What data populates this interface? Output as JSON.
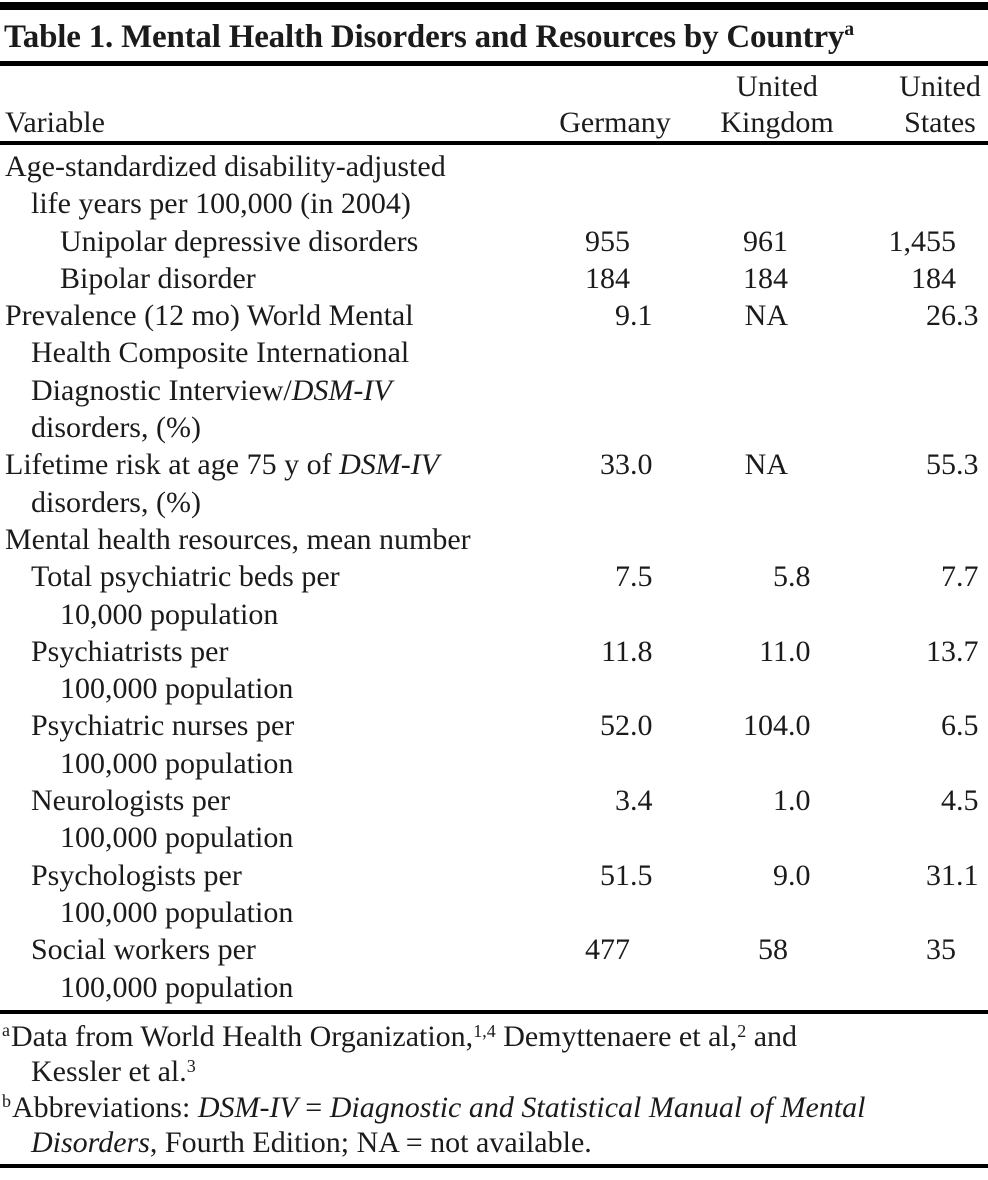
{
  "title": {
    "text": "Table 1. Mental Health Disorders and Resources by Country",
    "footnote_marker": "a"
  },
  "header": {
    "variable_label": "Variable",
    "columns": [
      {
        "name": "germany",
        "lines": [
          "",
          "Germany"
        ]
      },
      {
        "name": "united-kingdom",
        "lines": [
          "United",
          "Kingdom"
        ]
      },
      {
        "name": "united-states",
        "lines": [
          "United",
          "States"
        ]
      }
    ]
  },
  "table": {
    "lines": [
      {
        "indent": 0,
        "segments": [
          {
            "text": "Age-standardized disability-adjusted"
          }
        ],
        "values": null
      },
      {
        "indent": 1,
        "segments": [
          {
            "text": "life years per 100,000 (in 2004)"
          }
        ],
        "values": null
      },
      {
        "indent": 2,
        "segments": [
          {
            "text": "Unipolar depressive disorders"
          }
        ],
        "values": [
          {
            "int": "955",
            "dec": ""
          },
          {
            "int": "961",
            "dec": ""
          },
          {
            "int": "1,455",
            "dec": ""
          }
        ]
      },
      {
        "indent": 2,
        "segments": [
          {
            "text": "Bipolar disorder"
          }
        ],
        "values": [
          {
            "int": "184",
            "dec": ""
          },
          {
            "int": "184",
            "dec": ""
          },
          {
            "int": "184",
            "dec": ""
          }
        ]
      },
      {
        "indent": 0,
        "segments": [
          {
            "text": "Prevalence (12 mo) World Mental"
          }
        ],
        "values": [
          {
            "int": "9",
            "dec": ".1"
          },
          {
            "int": "NA",
            "dec": ""
          },
          {
            "int": "26",
            "dec": ".3"
          }
        ]
      },
      {
        "indent": 1,
        "segments": [
          {
            "text": "Health Composite International"
          }
        ],
        "values": null
      },
      {
        "indent": 1,
        "segments": [
          {
            "text": "Diagnostic Interview/"
          },
          {
            "text": "DSM-IV",
            "italic": true
          }
        ],
        "values": null
      },
      {
        "indent": 1,
        "segments": [
          {
            "text": "disorders, (%)"
          }
        ],
        "values": null
      },
      {
        "indent": 0,
        "segments": [
          {
            "text": "Lifetime risk at age 75 y of "
          },
          {
            "text": "DSM-IV",
            "italic": true
          }
        ],
        "values": [
          {
            "int": "33",
            "dec": ".0"
          },
          {
            "int": "NA",
            "dec": ""
          },
          {
            "int": "55",
            "dec": ".3"
          }
        ]
      },
      {
        "indent": 1,
        "segments": [
          {
            "text": "disorders, (%)"
          }
        ],
        "values": null
      },
      {
        "indent": 0,
        "segments": [
          {
            "text": "Mental health resources, mean number"
          }
        ],
        "values": null
      },
      {
        "indent": 1,
        "segments": [
          {
            "text": "Total psychiatric beds per"
          }
        ],
        "values": [
          {
            "int": "7",
            "dec": ".5"
          },
          {
            "int": "5",
            "dec": ".8"
          },
          {
            "int": "7",
            "dec": ".7"
          }
        ]
      },
      {
        "indent": 2,
        "segments": [
          {
            "text": "10,000 population"
          }
        ],
        "values": null
      },
      {
        "indent": 1,
        "segments": [
          {
            "text": "Psychiatrists per"
          }
        ],
        "values": [
          {
            "int": "11",
            "dec": ".8"
          },
          {
            "int": "11",
            "dec": ".0"
          },
          {
            "int": "13",
            "dec": ".7"
          }
        ]
      },
      {
        "indent": 2,
        "segments": [
          {
            "text": "100,000 population"
          }
        ],
        "values": null
      },
      {
        "indent": 1,
        "segments": [
          {
            "text": "Psychiatric nurses per"
          }
        ],
        "values": [
          {
            "int": "52",
            "dec": ".0"
          },
          {
            "int": "104",
            "dec": ".0"
          },
          {
            "int": "6",
            "dec": ".5"
          }
        ]
      },
      {
        "indent": 2,
        "segments": [
          {
            "text": "100,000 population"
          }
        ],
        "values": null
      },
      {
        "indent": 1,
        "segments": [
          {
            "text": "Neurologists per"
          }
        ],
        "values": [
          {
            "int": "3",
            "dec": ".4"
          },
          {
            "int": "1",
            "dec": ".0"
          },
          {
            "int": "4",
            "dec": ".5"
          }
        ]
      },
      {
        "indent": 2,
        "segments": [
          {
            "text": "100,000 population"
          }
        ],
        "values": null
      },
      {
        "indent": 1,
        "segments": [
          {
            "text": "Psychologists per"
          }
        ],
        "values": [
          {
            "int": "51",
            "dec": ".5"
          },
          {
            "int": "9",
            "dec": ".0"
          },
          {
            "int": "31",
            "dec": ".1"
          }
        ]
      },
      {
        "indent": 2,
        "segments": [
          {
            "text": "100,000 population"
          }
        ],
        "values": null
      },
      {
        "indent": 1,
        "segments": [
          {
            "text": "Social workers per"
          }
        ],
        "values": [
          {
            "int": "477",
            "dec": ""
          },
          {
            "int": "58",
            "dec": ""
          },
          {
            "int": "35",
            "dec": ""
          }
        ]
      },
      {
        "indent": 2,
        "segments": [
          {
            "text": "100,000 population"
          }
        ],
        "values": null
      }
    ]
  },
  "footnotes": [
    {
      "marker": "a",
      "lines": [
        {
          "indent": 0,
          "segments": [
            {
              "text": "Data from World Health Organization,"
            },
            {
              "text": "1,4",
              "sup": true
            },
            {
              "text": " Demyttenaere et al,"
            },
            {
              "text": "2",
              "sup": true
            },
            {
              "text": " and"
            }
          ]
        },
        {
          "indent": 1,
          "segments": [
            {
              "text": "Kessler et al."
            },
            {
              "text": "3",
              "sup": true
            }
          ]
        }
      ]
    },
    {
      "marker": "b",
      "lines": [
        {
          "indent": 0,
          "segments": [
            {
              "text": "Abbreviations: "
            },
            {
              "text": "DSM-IV",
              "italic": true
            },
            {
              "text": " = "
            },
            {
              "text": "Diagnostic and Statistical Manual of Mental",
              "italic": true
            }
          ]
        },
        {
          "indent": 1,
          "segments": [
            {
              "text": "Disorders",
              "italic": true
            },
            {
              "text": ", Fourth Edition; NA = not available."
            }
          ]
        }
      ]
    }
  ],
  "colors": {
    "text": "#1b1b1b",
    "background": "#ffffff",
    "rule": "#000000"
  }
}
